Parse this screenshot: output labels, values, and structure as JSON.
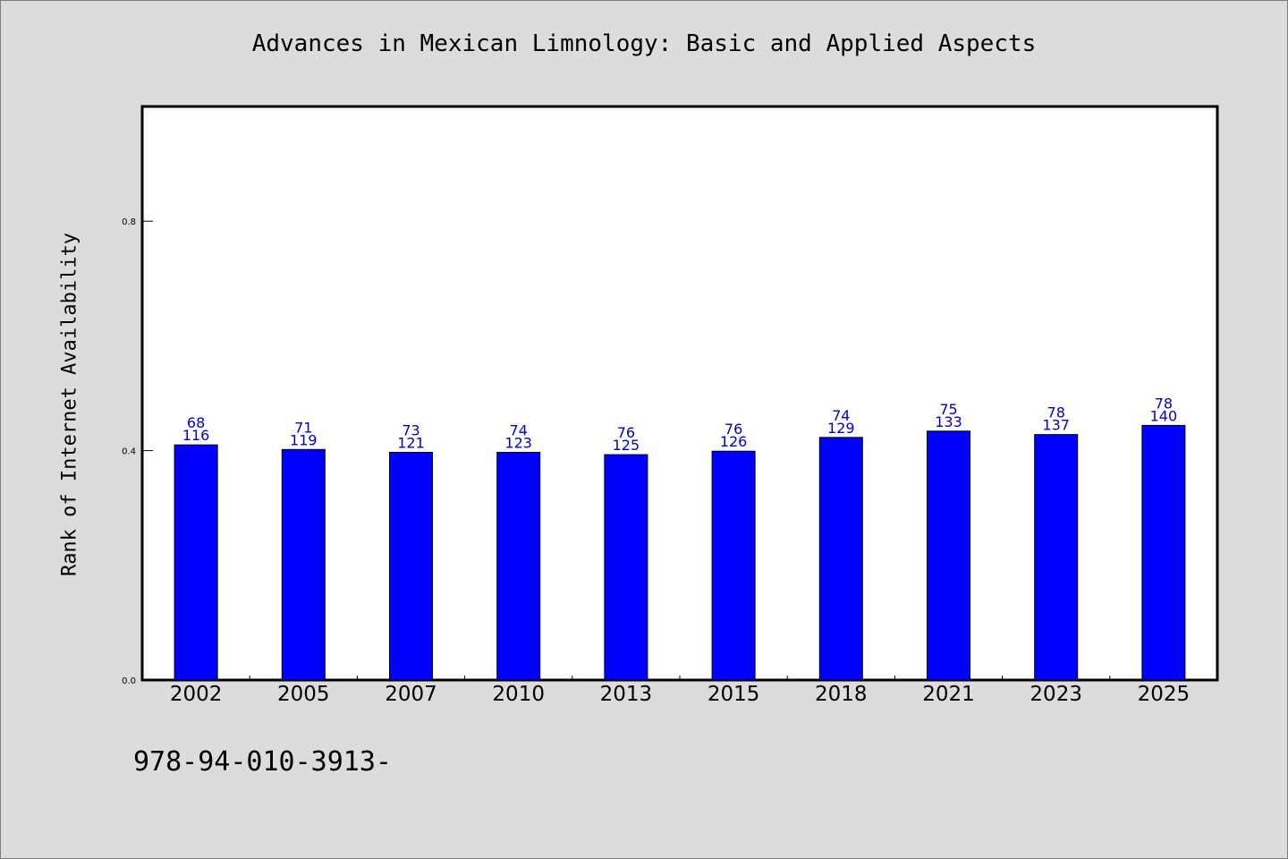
{
  "chart_data": {
    "type": "bar",
    "title": "Advances in Mexican Limnology: Basic and Applied Aspects",
    "xlabel": "",
    "ylabel": "Rank of Internet Availability",
    "categories": [
      "2002",
      "2005",
      "2007",
      "2010",
      "2013",
      "2015",
      "2018",
      "2021",
      "2023",
      "2025"
    ],
    "values": [
      0.41,
      0.402,
      0.397,
      0.397,
      0.393,
      0.399,
      0.423,
      0.434,
      0.428,
      0.444
    ],
    "annotations_top": [
      "68",
      "71",
      "73",
      "74",
      "76",
      "76",
      "74",
      "75",
      "78",
      "78"
    ],
    "annotations_bottom": [
      "116",
      "119",
      "121",
      "123",
      "125",
      "126",
      "129",
      "133",
      "137",
      "140"
    ],
    "yticks": [
      0.0,
      0.4,
      0.8
    ],
    "ytick_labels": [
      "0.0",
      "0.4",
      "0.8"
    ],
    "ylim": [
      0.0,
      1.0
    ],
    "grid": false,
    "bar_color": "#0000ff",
    "label_color": "#0000cc"
  },
  "footer": {
    "isbn": "978-94-010-3913-"
  }
}
